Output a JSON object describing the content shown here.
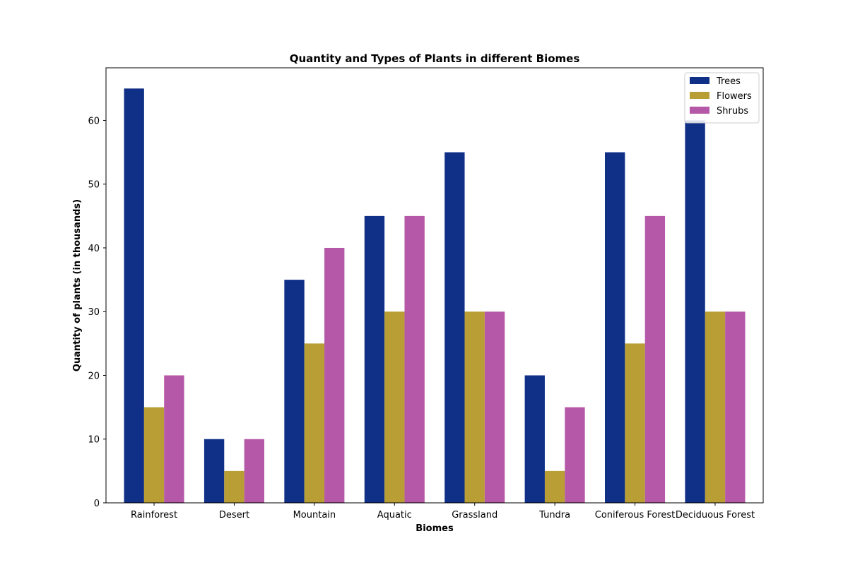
{
  "chart_data": {
    "type": "bar",
    "title": "Quantity and Types of Plants in different Biomes",
    "xlabel": "Biomes",
    "ylabel": "Quantity of plants (in thousands)",
    "categories": [
      "Rainforest",
      "Desert",
      "Mountain",
      "Aquatic",
      "Grassland",
      "Tundra",
      "Coniferous Forest",
      "Deciduous Forest"
    ],
    "series": [
      {
        "name": "Trees",
        "color": "#0f3086",
        "values": [
          65,
          10,
          35,
          45,
          55,
          20,
          55,
          60
        ]
      },
      {
        "name": "Flowers",
        "color": "#b89e35",
        "values": [
          15,
          5,
          25,
          30,
          30,
          5,
          25,
          30
        ]
      },
      {
        "name": "Shrubs",
        "color": "#b558a8",
        "values": [
          20,
          10,
          40,
          45,
          30,
          15,
          45,
          30
        ]
      }
    ],
    "ylim": [
      0,
      68.25
    ],
    "yticks": [
      0,
      10,
      20,
      30,
      40,
      50,
      60
    ],
    "legend_position": "top-right",
    "grid": false
  }
}
